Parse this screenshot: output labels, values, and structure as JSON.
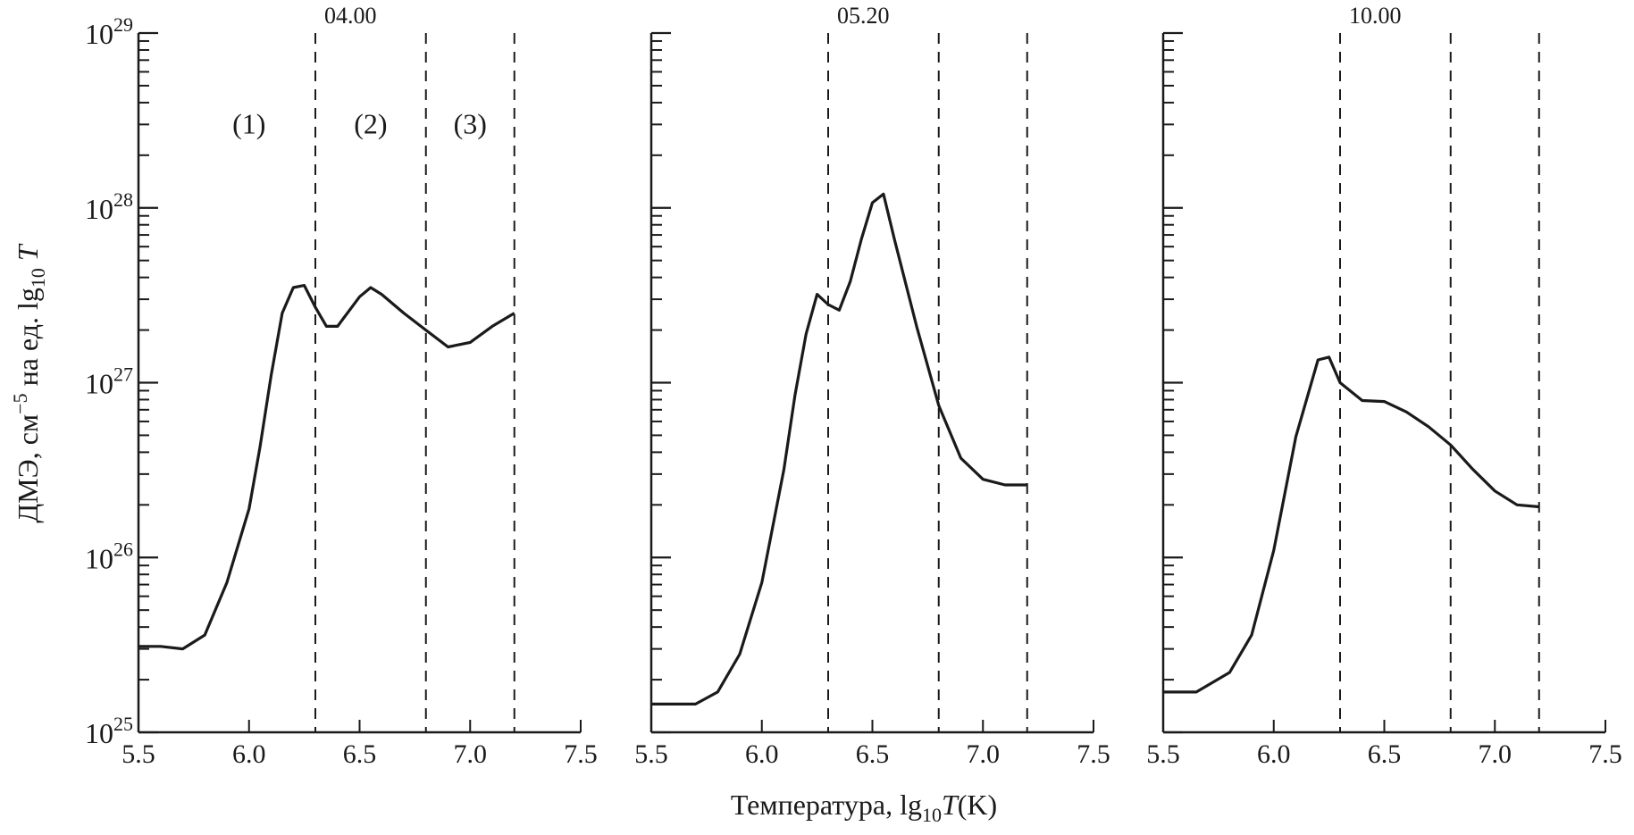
{
  "chart_data": [
    {
      "type": "line",
      "title": "04.00",
      "x_scale": "linear",
      "y_scale": "log",
      "xlim": [
        5.5,
        7.5
      ],
      "ylim": [
        1e+25,
        1e+29
      ],
      "x_ticks": [
        "5.5",
        "6.0",
        "6.5",
        "7.0",
        "7.5"
      ],
      "y_ticks": [
        {
          "base": "10",
          "exp": "25"
        },
        {
          "base": "10",
          "exp": "26"
        },
        {
          "base": "10",
          "exp": "27"
        },
        {
          "base": "10",
          "exp": "28"
        },
        {
          "base": "10",
          "exp": "29"
        }
      ],
      "vlines": [
        6.3,
        6.8,
        7.2
      ],
      "annotations": [
        {
          "text": "(1)",
          "x": 6.0,
          "y": 3e+28
        },
        {
          "text": "(2)",
          "x": 6.55,
          "y": 3e+28
        },
        {
          "text": "(3)",
          "x": 7.0,
          "y": 3e+28
        }
      ],
      "x": [
        5.5,
        5.6,
        5.7,
        5.8,
        5.9,
        6.0,
        6.05,
        6.1,
        6.15,
        6.2,
        6.25,
        6.3,
        6.35,
        6.4,
        6.5,
        6.55,
        6.6,
        6.7,
        6.8,
        6.9,
        7.0,
        7.1,
        7.2
      ],
      "y": [
        3.1e+25,
        3.1e+25,
        3e+25,
        3.6e+25,
        7.2e+25,
        1.9e+26,
        4.3e+26,
        1.1e+27,
        2.5e+27,
        3.5e+27,
        3.6e+27,
        2.7e+27,
        2.1e+27,
        2.1e+27,
        3.1e+27,
        3.5e+27,
        3.2e+27,
        2.5e+27,
        2e+27,
        1.6e+27,
        1.7e+27,
        2.1e+27,
        2.5e+27
      ]
    },
    {
      "type": "line",
      "title": "05.20",
      "x_scale": "linear",
      "y_scale": "log",
      "xlim": [
        5.5,
        7.5
      ],
      "ylim": [
        1e+25,
        1e+29
      ],
      "x_ticks": [
        "5.5",
        "6.0",
        "6.5",
        "7.0",
        "7.5"
      ],
      "vlines": [
        6.3,
        6.8,
        7.2
      ],
      "x": [
        5.5,
        5.7,
        5.8,
        5.9,
        6.0,
        6.1,
        6.15,
        6.2,
        6.25,
        6.3,
        6.35,
        6.4,
        6.45,
        6.5,
        6.55,
        6.6,
        6.7,
        6.8,
        6.9,
        7.0,
        7.1,
        7.2
      ],
      "y": [
        1.45e+25,
        1.45e+25,
        1.7e+25,
        2.8e+25,
        7.2e+25,
        3.2e+26,
        8.5e+26,
        1.9e+27,
        3.2e+27,
        2.8e+27,
        2.6e+27,
        3.8e+27,
        6.6e+27,
        1.07e+28,
        1.2e+28,
        6.6e+27,
        2.1e+27,
        7.4e+26,
        3.7e+26,
        2.8e+26,
        2.6e+26,
        2.6e+26
      ]
    },
    {
      "type": "line",
      "title": "10.00",
      "x_scale": "linear",
      "y_scale": "log",
      "xlim": [
        5.5,
        7.5
      ],
      "ylim": [
        1e+25,
        1e+29
      ],
      "x_ticks": [
        "5.5",
        "6.0",
        "6.5",
        "7.0",
        "7.5"
      ],
      "vlines": [
        6.3,
        6.8,
        7.2
      ],
      "x": [
        5.5,
        5.65,
        5.8,
        5.9,
        6.0,
        6.1,
        6.2,
        6.25,
        6.3,
        6.4,
        6.5,
        6.6,
        6.7,
        6.8,
        6.9,
        7.0,
        7.1,
        7.2
      ],
      "y": [
        1.7e+25,
        1.7e+25,
        2.2e+25,
        3.6e+25,
        1.1e+26,
        4.9e+26,
        1.35e+27,
        1.4e+27,
        1e+27,
        7.9e+26,
        7.8e+26,
        6.8e+26,
        5.6e+26,
        4.4e+26,
        3.2e+26,
        2.4e+26,
        2e+26,
        1.95e+26
      ]
    }
  ],
  "xlabel": {
    "pre": "Температура, lg",
    "sub": "10",
    "italic": "T",
    "post": "(K)"
  },
  "ylabel": {
    "pre": "ДМЭ, см",
    "sup": "−5",
    "mid": " на ед. lg",
    "sub": "10",
    "italic": " T"
  },
  "colors": {
    "line": "#1a1a1a",
    "background": "#ffffff"
  }
}
